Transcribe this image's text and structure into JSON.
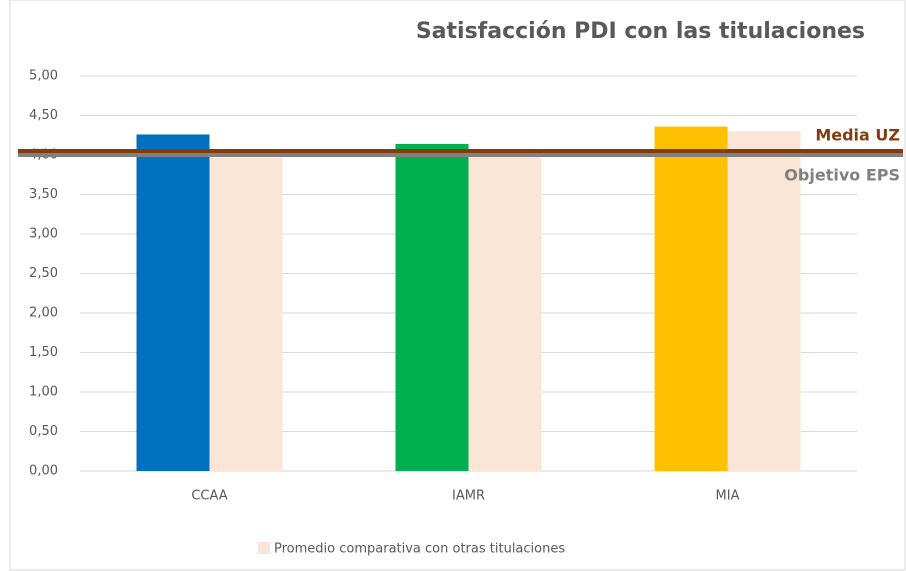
{
  "chart_data": {
    "type": "bar",
    "title": "Satisfacción PDI con las titulaciones",
    "categories": [
      "CCAA",
      "IAMR",
      "MIA"
    ],
    "series": [
      {
        "colors": [
          "#0070c0",
          "#00b050",
          "#ffc000"
        ],
        "values": [
          4.26,
          4.14,
          4.36
        ]
      },
      {
        "name": "Promedio comparativa con otras titulaciones",
        "color": "#fbe5d6",
        "values": [
          3.97,
          4.08,
          4.3
        ]
      }
    ],
    "reference_lines": [
      {
        "label": "Media UZ",
        "value": 4.05,
        "color": "#843c0c"
      },
      {
        "label": "Objetivo EPS",
        "value": 4.0,
        "color": "#808080"
      }
    ],
    "ylim": [
      0,
      5
    ],
    "yticks": [
      {
        "value": 0,
        "label": "0,00"
      },
      {
        "value": 0.5,
        "label": "0,50"
      },
      {
        "value": 1,
        "label": "1,00"
      },
      {
        "value": 1.5,
        "label": "1,50"
      },
      {
        "value": 2,
        "label": "2,00"
      },
      {
        "value": 2.5,
        "label": "2,50"
      },
      {
        "value": 3,
        "label": "3,00"
      },
      {
        "value": 3.5,
        "label": "3,50"
      },
      {
        "value": 4,
        "label": "4,00"
      },
      {
        "value": 4.5,
        "label": "4,50"
      },
      {
        "value": 5,
        "label": "5,00"
      }
    ],
    "grid": true,
    "legend": "bottom"
  }
}
